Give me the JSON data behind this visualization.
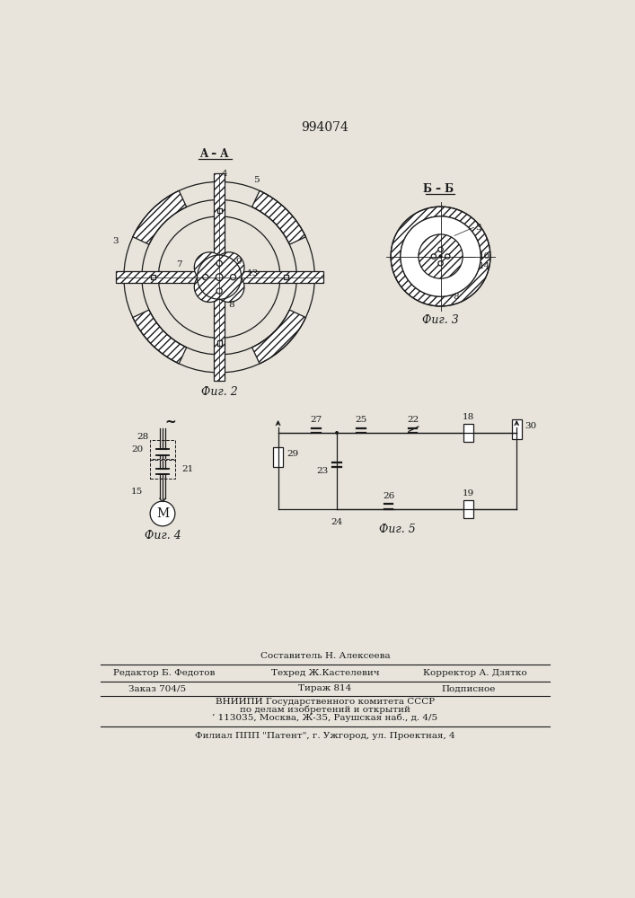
{
  "title": "994074",
  "bg_color": "#e8e4dc",
  "line_color": "#1a1a1a",
  "fig2_label": "Фиг. 2",
  "fig3_label": "Фиг. 3",
  "fig4_label": "Фиг. 4",
  "fig5_label": "Фиг. 5",
  "footer_sestavitel": "Составитель Н. Алексеева",
  "footer_redaktor": "Редактор Б. Федотов",
  "footer_tehred": "Техред Ж.Кастелевич",
  "footer_korrektor": "Корректор А. Дзятко",
  "footer_zakaz": "Заказ 704/5",
  "footer_tirazh": "Тираж 814",
  "footer_podpisnoe": "Подписное",
  "footer_vniip1": "ВНИИПИ Государственного комитета СССР",
  "footer_vniip2": "по делам изобретений и открытий",
  "footer_addr": "’ 113035, Москва, Ж-35, Раушская наб., д. 4/5",
  "footer_filial": "Филиал ППП \"Патент\", г. Ужгород, ул. Проектная, 4"
}
